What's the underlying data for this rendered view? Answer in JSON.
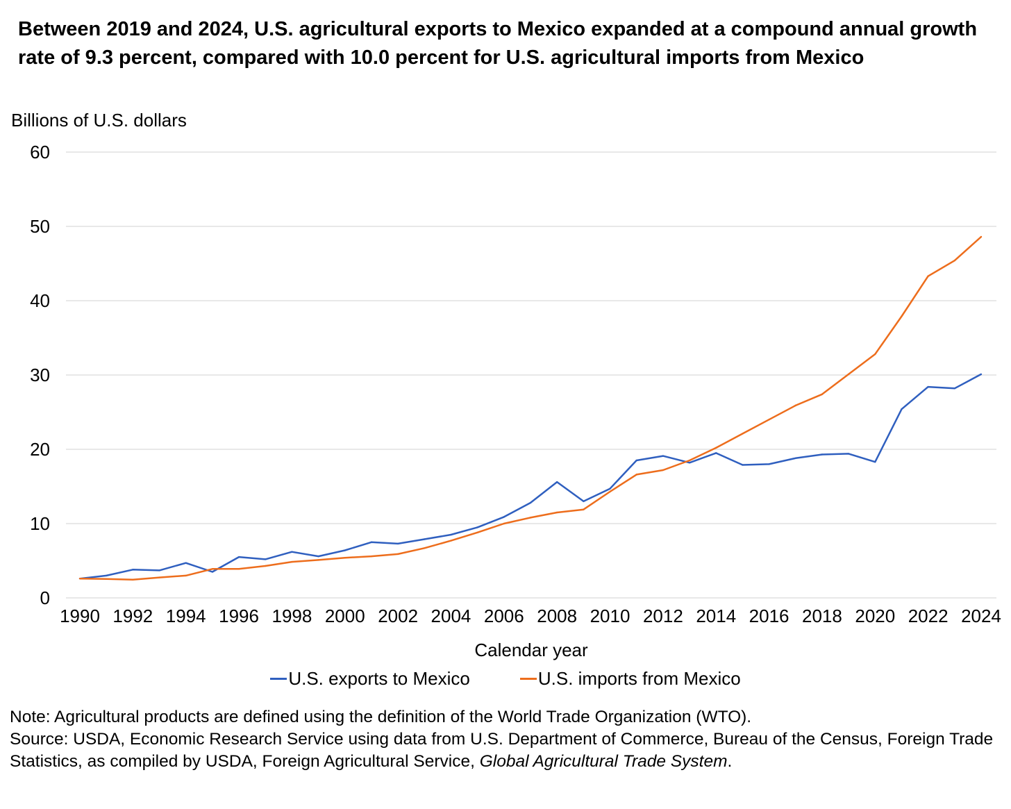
{
  "chart_data": {
    "type": "line",
    "title": "Between 2019 and 2024, U.S. agricultural exports to Mexico expanded at a compound annual growth rate of 9.3 percent, compared with 10.0 percent for U.S. agricultural imports from Mexico",
    "ylabel": "Billions of U.S. dollars",
    "xlabel": "Calendar year",
    "ylim": [
      0,
      60
    ],
    "yticks": [
      "0",
      "10",
      "20",
      "30",
      "40",
      "50",
      "60"
    ],
    "xticks": [
      "1990",
      "1992",
      "1994",
      "1996",
      "1998",
      "2000",
      "2002",
      "2004",
      "2006",
      "2008",
      "2010",
      "2012",
      "2014",
      "2016",
      "2018",
      "2020",
      "2022",
      "2024"
    ],
    "grid": true,
    "legend_position": "bottom",
    "x": [
      1990,
      1991,
      1992,
      1993,
      1994,
      1995,
      1996,
      1997,
      1998,
      1999,
      2000,
      2001,
      2002,
      2003,
      2004,
      2005,
      2006,
      2007,
      2008,
      2009,
      2010,
      2011,
      2012,
      2013,
      2014,
      2015,
      2016,
      2017,
      2018,
      2019,
      2020,
      2021,
      2022,
      2023,
      2024
    ],
    "series": [
      {
        "name": "U.S. exports to Mexico",
        "color": "#2f5fbf",
        "values": [
          2.6,
          3.0,
          3.8,
          3.7,
          4.7,
          3.5,
          5.5,
          5.2,
          6.2,
          5.6,
          6.4,
          7.5,
          7.3,
          7.9,
          8.5,
          9.5,
          10.9,
          12.8,
          15.6,
          13.0,
          14.7,
          18.5,
          19.1,
          18.2,
          19.5,
          17.9,
          18.0,
          18.8,
          19.3,
          19.4,
          18.3,
          25.4,
          28.4,
          28.2,
          30.1
        ]
      },
      {
        "name": "U.S. imports from Mexico",
        "color": "#ed6d1c",
        "values": [
          2.6,
          2.55,
          2.45,
          2.75,
          3.0,
          3.9,
          3.9,
          4.3,
          4.85,
          5.1,
          5.4,
          5.6,
          5.9,
          6.7,
          7.7,
          8.8,
          10.0,
          10.8,
          11.5,
          11.9,
          14.3,
          16.6,
          17.2,
          18.5,
          20.2,
          22.1,
          24.0,
          25.9,
          27.4,
          30.1,
          32.8,
          37.9,
          43.3,
          45.4,
          48.6
        ]
      }
    ]
  },
  "notes": {
    "note": "Note: Agricultural products are defined using the definition of the World Trade Organization (WTO).",
    "source_prefix": "Source: USDA, Economic Research Service using data from U.S. Department of Commerce, Bureau of the Census, Foreign Trade Statistics, as compiled by USDA, Foreign Agricultural Service, ",
    "source_italic": "Global Agricultural Trade System",
    "source_suffix": "."
  }
}
